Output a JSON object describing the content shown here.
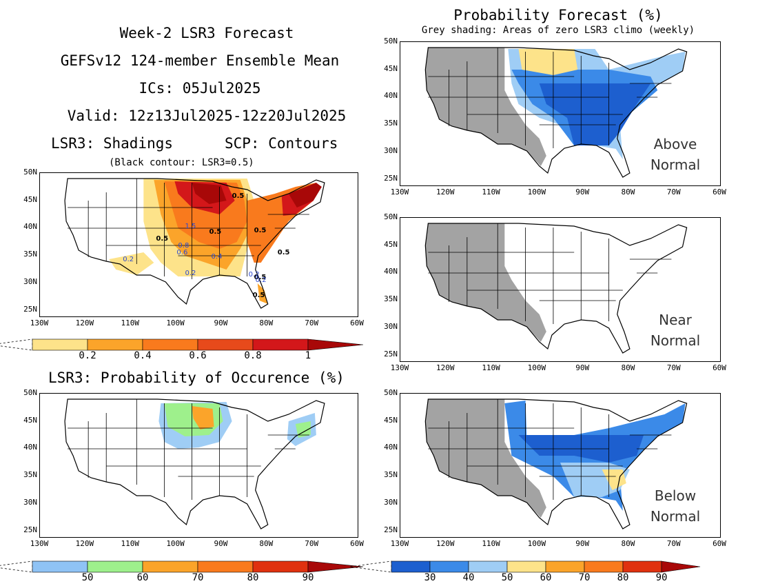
{
  "header": {
    "line1": "Week-2 LSR3 Forecast",
    "line2": "GEFSv12 124-member Ensemble Mean",
    "line3": "ICs: 05Jul2025",
    "line4": "Valid: 12z13Jul2025-12z20Jul2025",
    "line5_left": "LSR3: Shadings",
    "line5_right": "SCP: Contours",
    "line6": "(Black contour: LSR3=0.5)"
  },
  "right_header": {
    "title": "Probability Forecast (%)",
    "subtitle": "Grey shading: Areas of zero LSR3 climo (weekly)"
  },
  "occurrence_title": "LSR3: Probability of Occurence (%)",
  "axes": {
    "lat_labels": [
      "50N",
      "45N",
      "40N",
      "35N",
      "30N",
      "25N"
    ],
    "lon_labels": [
      "130W",
      "120W",
      "110W",
      "100W",
      "90W",
      "80W",
      "70W",
      "60W"
    ]
  },
  "panels": {
    "above": {
      "label1": "Above",
      "label2": "Normal"
    },
    "near": {
      "label1": "Near",
      "label2": "Normal"
    },
    "below": {
      "label1": "Below",
      "label2": "Normal"
    }
  },
  "contour_labels": [
    "0.5",
    "0.5",
    "0.5",
    "0.5",
    "0.5",
    "0.5",
    "0.5",
    "1.5",
    "0.8",
    "0.6",
    "0.4",
    "0.2",
    "0.2",
    "0.2",
    "0.2"
  ],
  "colorbars": {
    "lsr3": {
      "labels": [
        "0.2",
        "0.4",
        "0.6",
        "0.8",
        "1"
      ],
      "colors": [
        "#fde38a",
        "#fba42a",
        "#f97a1d",
        "#e74a1b",
        "#d3171a",
        "#a80808"
      ]
    },
    "occurrence": {
      "labels": [
        "50",
        "60",
        "70",
        "80",
        "90"
      ],
      "colors": [
        "#8fc3f5",
        "#9ef08c",
        "#fba42a",
        "#f97a1d",
        "#e0310f",
        "#a80808"
      ]
    },
    "probability": {
      "labels": [
        "30",
        "40",
        "50",
        "60",
        "70",
        "80",
        "90"
      ],
      "colors": [
        "#1d5fcf",
        "#3b8ae8",
        "#9fcdf5",
        "#fde38a",
        "#fba42a",
        "#f97a1d",
        "#e0310f",
        "#a80808"
      ]
    }
  },
  "map_colors": {
    "grey": "#a3a3a3",
    "blue_dark": "#1d5fcf",
    "blue_mid": "#3b8ae8",
    "blue_light": "#9fcdf5",
    "yellow": "#fde38a",
    "orange": "#fba42a",
    "red_orange": "#f97a1d",
    "red": "#d3171a",
    "dark_red": "#a80808",
    "green": "#9ef08c",
    "contour_blue": "#2b49d0"
  }
}
